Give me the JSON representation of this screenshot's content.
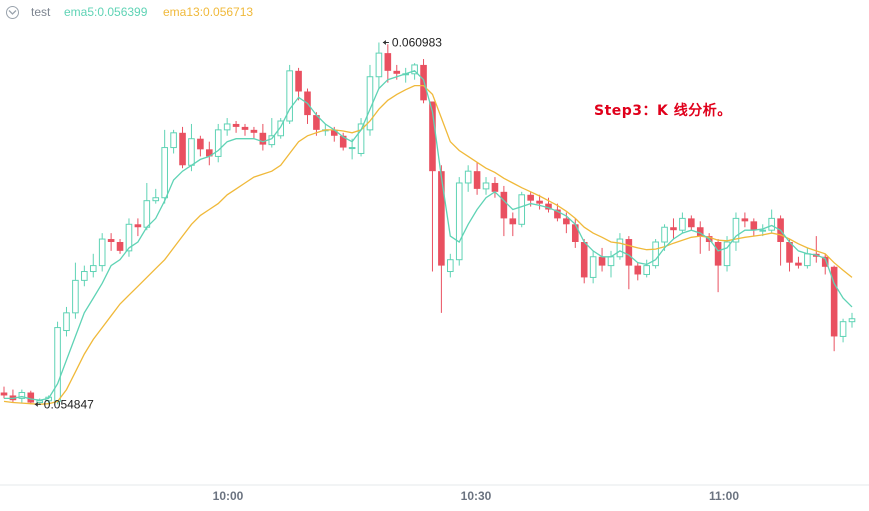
{
  "legend": {
    "symbol": "test",
    "ema5": "ema5:0.056399",
    "ema13": "ema13:0.056713",
    "ema5_color": "#5fd3b5",
    "ema13_color": "#f0b93a",
    "toggle_icon": "chevron-down-icon"
  },
  "annotation": "Step3：K 线分析。",
  "chart_data": {
    "type": "candlestick",
    "x_labels": [
      "10:00",
      "10:30",
      "11:00"
    ],
    "ylim": [
      0.0535,
      0.0617
    ],
    "high_marker": "0.060983",
    "low_marker": "0.054847",
    "up_color": "#5fd3b5",
    "down_color": "#e95060",
    "candles": [
      [
        0.05505,
        0.055,
        0.05515,
        0.05495
      ],
      [
        0.055,
        0.05492,
        0.0551,
        0.05488
      ],
      [
        0.05495,
        0.05505,
        0.0551,
        0.05488
      ],
      [
        0.05505,
        0.05488,
        0.05508,
        0.05485
      ],
      [
        0.05488,
        0.05491,
        0.05495,
        0.05485
      ],
      [
        0.05491,
        0.05497,
        0.055,
        0.05485
      ],
      [
        0.0549,
        0.05615,
        0.05625,
        0.05485
      ],
      [
        0.0561,
        0.0564,
        0.0565,
        0.056
      ],
      [
        0.0564,
        0.05695,
        0.05725,
        0.0563
      ],
      [
        0.05695,
        0.0571,
        0.0572,
        0.05685
      ],
      [
        0.0571,
        0.0572,
        0.0574,
        0.057
      ],
      [
        0.0572,
        0.05765,
        0.05775,
        0.0571
      ],
      [
        0.05765,
        0.0576,
        0.05775,
        0.05745
      ],
      [
        0.0576,
        0.05745,
        0.05765,
        0.0574
      ],
      [
        0.05745,
        0.0579,
        0.058,
        0.05735
      ],
      [
        0.0579,
        0.05785,
        0.058,
        0.0577
      ],
      [
        0.05785,
        0.0583,
        0.0586,
        0.0578
      ],
      [
        0.0583,
        0.05835,
        0.0585,
        0.05825
      ],
      [
        0.05835,
        0.0592,
        0.0595,
        0.05825
      ],
      [
        0.0592,
        0.05945,
        0.0595,
        0.0591
      ],
      [
        0.05945,
        0.0589,
        0.05955,
        0.05885
      ],
      [
        0.0589,
        0.05935,
        0.0596,
        0.0588
      ],
      [
        0.05935,
        0.05917,
        0.0594,
        0.05905
      ],
      [
        0.05917,
        0.05905,
        0.0593,
        0.0589
      ],
      [
        0.05905,
        0.0595,
        0.0596,
        0.05895
      ],
      [
        0.0595,
        0.0596,
        0.0597,
        0.0594
      ],
      [
        0.0596,
        0.05955,
        0.05965,
        0.05945
      ],
      [
        0.05955,
        0.0595,
        0.0596,
        0.0594
      ],
      [
        0.0595,
        0.05945,
        0.05955,
        0.05935
      ],
      [
        0.05945,
        0.05925,
        0.0596,
        0.05915
      ],
      [
        0.05925,
        0.0594,
        0.0597,
        0.0592
      ],
      [
        0.0594,
        0.05965,
        0.0597,
        0.05935
      ],
      [
        0.05965,
        0.0605,
        0.0606,
        0.0596
      ],
      [
        0.0605,
        0.06015,
        0.06055,
        0.06
      ],
      [
        0.06015,
        0.05975,
        0.0602,
        0.0596
      ],
      [
        0.05975,
        0.0595,
        0.0598,
        0.0594
      ],
      [
        0.0595,
        0.0595,
        0.0596,
        0.0594
      ],
      [
        0.0595,
        0.0594,
        0.05955,
        0.0593
      ],
      [
        0.0594,
        0.0592,
        0.05945,
        0.05915
      ],
      [
        0.0592,
        0.0592,
        0.05935,
        0.059
      ],
      [
        0.0591,
        0.0596,
        0.0597,
        0.05905
      ],
      [
        0.0595,
        0.0604,
        0.0606,
        0.0594
      ],
      [
        0.0604,
        0.0608,
        0.06098,
        0.0602
      ],
      [
        0.0608,
        0.0605,
        0.06095,
        0.0603
      ],
      [
        0.0605,
        0.06045,
        0.0606,
        0.06035
      ],
      [
        0.06045,
        0.06045,
        0.06055,
        0.0603
      ],
      [
        0.06045,
        0.0606,
        0.06063,
        0.06035
      ],
      [
        0.0606,
        0.06,
        0.0607,
        0.05995
      ],
      [
        0.05998,
        0.0588,
        0.05998,
        0.0571
      ],
      [
        0.0588,
        0.0572,
        0.0589,
        0.0564
      ],
      [
        0.0571,
        0.0573,
        0.0574,
        0.057
      ],
      [
        0.0573,
        0.0586,
        0.0587,
        0.0572
      ],
      [
        0.0586,
        0.0588,
        0.0589,
        0.05845
      ],
      [
        0.0588,
        0.0585,
        0.05895,
        0.0584
      ],
      [
        0.0585,
        0.0586,
        0.0587,
        0.0584
      ],
      [
        0.0586,
        0.05845,
        0.0587,
        0.05835
      ],
      [
        0.05845,
        0.058,
        0.05855,
        0.0577
      ],
      [
        0.058,
        0.0579,
        0.0581,
        0.0577
      ],
      [
        0.0579,
        0.0584,
        0.05845,
        0.05785
      ],
      [
        0.0584,
        0.0583,
        0.05845,
        0.0582
      ],
      [
        0.0583,
        0.05825,
        0.0584,
        0.05815
      ],
      [
        0.05825,
        0.05815,
        0.05835,
        0.0581
      ],
      [
        0.05815,
        0.058,
        0.05825,
        0.05795
      ],
      [
        0.058,
        0.0579,
        0.0581,
        0.05775
      ],
      [
        0.0579,
        0.0576,
        0.058,
        0.0575
      ],
      [
        0.0576,
        0.057,
        0.05765,
        0.0569
      ],
      [
        0.057,
        0.05735,
        0.05745,
        0.0569
      ],
      [
        0.05735,
        0.0572,
        0.0575,
        0.0571
      ],
      [
        0.0572,
        0.05735,
        0.05745,
        0.057
      ],
      [
        0.05735,
        0.05765,
        0.05775,
        0.0573
      ],
      [
        0.05765,
        0.0572,
        0.0577,
        0.0568
      ],
      [
        0.0572,
        0.05705,
        0.05725,
        0.05695
      ],
      [
        0.05705,
        0.0572,
        0.0573,
        0.057
      ],
      [
        0.0572,
        0.0576,
        0.05765,
        0.05715
      ],
      [
        0.0576,
        0.05785,
        0.0579,
        0.05745
      ],
      [
        0.05785,
        0.0578,
        0.058,
        0.05765
      ],
      [
        0.0578,
        0.058,
        0.0581,
        0.05775
      ],
      [
        0.058,
        0.05785,
        0.05805,
        0.0578
      ],
      [
        0.05785,
        0.0577,
        0.05795,
        0.0574
      ],
      [
        0.0577,
        0.0576,
        0.05775,
        0.05745
      ],
      [
        0.0576,
        0.0572,
        0.05765,
        0.05675
      ],
      [
        0.0572,
        0.0576,
        0.0577,
        0.0571
      ],
      [
        0.0576,
        0.058,
        0.0581,
        0.05745
      ],
      [
        0.058,
        0.05795,
        0.0581,
        0.05785
      ],
      [
        0.05795,
        0.0578,
        0.058,
        0.0577
      ],
      [
        0.0578,
        0.0578,
        0.0579,
        0.0577
      ],
      [
        0.0578,
        0.058,
        0.05815,
        0.05775
      ],
      [
        0.058,
        0.0576,
        0.05805,
        0.0572
      ],
      [
        0.0576,
        0.05725,
        0.05765,
        0.0571
      ],
      [
        0.05725,
        0.0572,
        0.05735,
        0.05715
      ],
      [
        0.0572,
        0.0574,
        0.0575,
        0.05715
      ],
      [
        0.0574,
        0.05735,
        0.0577,
        0.05725
      ],
      [
        0.05735,
        0.05718,
        0.0574,
        0.05705
      ],
      [
        0.05718,
        0.056,
        0.0572,
        0.05575
      ],
      [
        0.056,
        0.05625,
        0.0563,
        0.0559
      ],
      [
        0.05625,
        0.0563,
        0.0564,
        0.05615
      ]
    ],
    "ema5": [
      0.05495,
      0.05495,
      0.05498,
      0.05494,
      0.05492,
      0.05495,
      0.0552,
      0.0556,
      0.056,
      0.0564,
      0.05665,
      0.0569,
      0.0572,
      0.0573,
      0.0575,
      0.0576,
      0.05785,
      0.058,
      0.0583,
      0.05865,
      0.0588,
      0.0589,
      0.059,
      0.05905,
      0.05915,
      0.0593,
      0.05935,
      0.05935,
      0.05935,
      0.0593,
      0.05935,
      0.05955,
      0.05985,
      0.06005,
      0.05995,
      0.05975,
      0.0596,
      0.0595,
      0.05938,
      0.0593,
      0.0595,
      0.05985,
      0.0602,
      0.06035,
      0.0604,
      0.06045,
      0.0605,
      0.06035,
      0.0598,
      0.0587,
      0.0577,
      0.0576,
      0.0579,
      0.05815,
      0.05835,
      0.05845,
      0.0583,
      0.05815,
      0.0582,
      0.05825,
      0.05822,
      0.05818,
      0.05812,
      0.05804,
      0.0579,
      0.0576,
      0.05745,
      0.05735,
      0.05735,
      0.05745,
      0.05738,
      0.05725,
      0.05722,
      0.0573,
      0.0575,
      0.05765,
      0.05775,
      0.0578,
      0.05775,
      0.05765,
      0.05745,
      0.0575,
      0.0577,
      0.0578,
      0.0578,
      0.05782,
      0.05788,
      0.0578,
      0.0576,
      0.05745,
      0.0574,
      0.05738,
      0.05732,
      0.0569,
      0.05665,
      0.0565
    ],
    "ema13": [
      0.0549,
      0.05488,
      0.05487,
      0.05486,
      0.05485,
      0.05486,
      0.0549,
      0.0551,
      0.0554,
      0.0557,
      0.05595,
      0.05615,
      0.05635,
      0.05655,
      0.0567,
      0.05685,
      0.057,
      0.05715,
      0.0573,
      0.0575,
      0.0577,
      0.0579,
      0.05805,
      0.05815,
      0.05825,
      0.0584,
      0.0585,
      0.0586,
      0.0587,
      0.05875,
      0.0588,
      0.0589,
      0.0591,
      0.0593,
      0.0594,
      0.05945,
      0.0595,
      0.0595,
      0.05948,
      0.05945,
      0.0595,
      0.05965,
      0.05985,
      0.06,
      0.0601,
      0.06018,
      0.06025,
      0.06025,
      0.0601,
      0.0597,
      0.0593,
      0.05915,
      0.05905,
      0.05895,
      0.05885,
      0.05878,
      0.05868,
      0.0586,
      0.05852,
      0.05845,
      0.05838,
      0.0583,
      0.05822,
      0.05812,
      0.058,
      0.05785,
      0.05775,
      0.05768,
      0.0576,
      0.05758,
      0.05754,
      0.0575,
      0.05747,
      0.05748,
      0.05752,
      0.05758,
      0.05763,
      0.05768,
      0.0577,
      0.05768,
      0.05763,
      0.05762,
      0.05765,
      0.05768,
      0.0577,
      0.05772,
      0.05775,
      0.05772,
      0.05765,
      0.05757,
      0.0575,
      0.05745,
      0.0574,
      0.05725,
      0.05712,
      0.057
    ]
  }
}
